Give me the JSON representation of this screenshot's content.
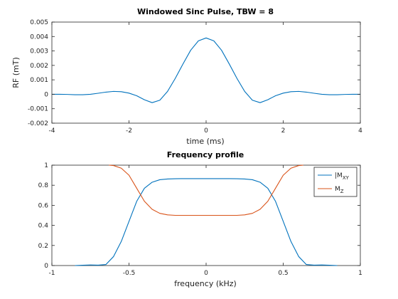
{
  "chart_data": [
    {
      "type": "line",
      "title": "Windowed Sinc Pulse, TBW = 8",
      "xlabel": "time (ms)",
      "ylabel": "RF  (mT)",
      "xlim": [
        -4,
        4
      ],
      "ylim": [
        -0.002,
        0.005
      ],
      "xticks": [
        -4,
        -2,
        0,
        2,
        4
      ],
      "xtick_labels": [
        "-4",
        "-2",
        "0",
        "2",
        "4"
      ],
      "yticks": [
        -0.002,
        -0.001,
        0,
        0.001,
        0.002,
        0.003,
        0.004,
        0.005
      ],
      "ytick_labels": [
        "-0.002",
        "-0.001",
        "0",
        "0.001",
        "0.002",
        "0.003",
        "0.004",
        "0.005"
      ],
      "grid": false,
      "series": [
        {
          "color": "#0072BD",
          "x": [
            -4,
            -3.8,
            -3.6,
            -3.4,
            -3.2,
            -3.0,
            -2.8,
            -2.6,
            -2.4,
            -2.2,
            -2.0,
            -1.8,
            -1.6,
            -1.4,
            -1.2,
            -1.0,
            -0.8,
            -0.6,
            -0.4,
            -0.2,
            0,
            0.2,
            0.4,
            0.6,
            0.8,
            1.0,
            1.2,
            1.4,
            1.6,
            1.8,
            2.0,
            2.2,
            2.4,
            2.6,
            2.8,
            3.0,
            3.2,
            3.4,
            3.6,
            3.8,
            4
          ],
          "y": [
            0,
            0,
            -1e-05,
            -3e-05,
            -3e-05,
            0,
            7e-05,
            0.00015,
            0.0002,
            0.00018,
            8e-05,
            -0.0001,
            -0.00038,
            -0.00058,
            -0.00041,
            0.0002,
            0.0011,
            0.0021,
            0.00305,
            0.0037,
            0.0039,
            0.0037,
            0.00305,
            0.0021,
            0.0011,
            0.0002,
            -0.00041,
            -0.00058,
            -0.00038,
            -0.0001,
            8e-05,
            0.00018,
            0.0002,
            0.00015,
            7e-05,
            0,
            -3e-05,
            -3e-05,
            -1e-05,
            0,
            0
          ]
        }
      ]
    },
    {
      "type": "line",
      "title": "Frequency profile",
      "xlabel": "frequency (kHz)",
      "ylabel": "",
      "xlim": [
        -1,
        1
      ],
      "ylim": [
        0,
        1
      ],
      "xticks": [
        -1,
        -0.5,
        0,
        0.5,
        1
      ],
      "xtick_labels": [
        "-1",
        "-0.5",
        "0",
        "0.5",
        "1"
      ],
      "yticks": [
        0,
        0.2,
        0.4,
        0.6,
        0.8,
        1
      ],
      "ytick_labels": [
        "0",
        "0.2",
        "0.4",
        "0.6",
        "0.8",
        "1"
      ],
      "grid": false,
      "legend": {
        "position": "top-right"
      },
      "series": [
        {
          "name": "|M",
          "name_sub": "XY",
          "color": "#0072BD",
          "x": [
            -0.85,
            -0.8,
            -0.75,
            -0.7,
            -0.65,
            -0.6,
            -0.55,
            -0.5,
            -0.45,
            -0.4,
            -0.35,
            -0.3,
            -0.25,
            -0.2,
            -0.15,
            -0.1,
            0,
            0.1,
            0.15,
            0.2,
            0.25,
            0.3,
            0.35,
            0.4,
            0.45,
            0.5,
            0.55,
            0.6,
            0.65,
            0.7,
            0.75,
            0.8,
            0.85
          ],
          "y": [
            0.0,
            0.003,
            0.006,
            0.004,
            0.01,
            0.09,
            0.24,
            0.44,
            0.64,
            0.77,
            0.83,
            0.855,
            0.862,
            0.865,
            0.866,
            0.866,
            0.866,
            0.866,
            0.866,
            0.865,
            0.862,
            0.855,
            0.83,
            0.77,
            0.64,
            0.44,
            0.24,
            0.09,
            0.01,
            0.004,
            0.006,
            0.003,
            0.0
          ]
        },
        {
          "name": "M",
          "name_sub": "Z",
          "color": "#D95319",
          "x": [
            -0.63,
            -0.6,
            -0.55,
            -0.5,
            -0.45,
            -0.4,
            -0.35,
            -0.3,
            -0.25,
            -0.2,
            -0.15,
            -0.1,
            0,
            0.1,
            0.15,
            0.2,
            0.25,
            0.3,
            0.35,
            0.4,
            0.45,
            0.5,
            0.55,
            0.6,
            0.63
          ],
          "y": [
            1.0,
            0.996,
            0.97,
            0.9,
            0.77,
            0.64,
            0.56,
            0.52,
            0.505,
            0.5,
            0.5,
            0.5,
            0.5,
            0.5,
            0.5,
            0.5,
            0.505,
            0.52,
            0.56,
            0.64,
            0.77,
            0.9,
            0.97,
            0.996,
            1.0
          ]
        }
      ]
    }
  ]
}
